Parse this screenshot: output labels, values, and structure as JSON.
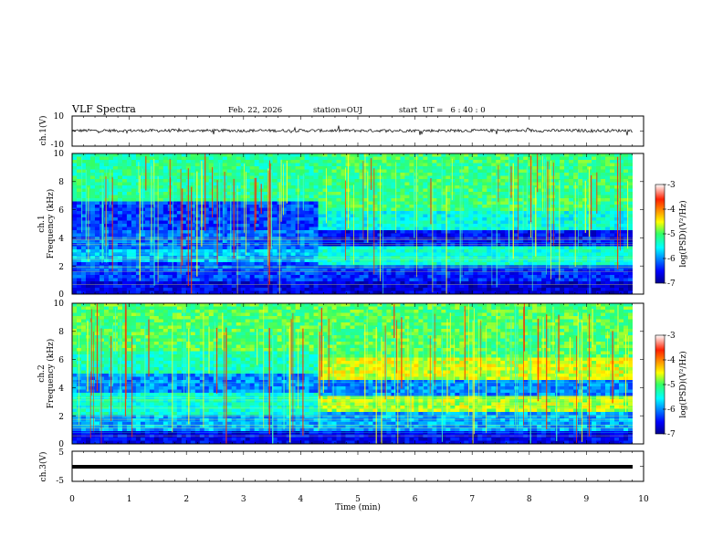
{
  "header": {
    "title": "VLF Spectra",
    "date": "Feb. 22, 2026",
    "station": "station=OUJ",
    "start_ut": "start  UT =   6 : 40 : 0"
  },
  "chart_data": [
    {
      "type": "line",
      "panel": "ch1-waveform",
      "ylabel": "ch.1(V)",
      "ylim": [
        -10,
        10
      ],
      "y_ticks": [
        "10",
        "-10"
      ],
      "x_range_min": [
        0,
        9.85
      ],
      "description_level": 0
    },
    {
      "type": "heatmap",
      "panel": "ch1-spectrogram",
      "ylabel_lines": [
        "ch.1",
        "Frequency (kHz)"
      ],
      "ylim": [
        0,
        10
      ],
      "y_ticks": [
        "0",
        "2",
        "4",
        "6",
        "8",
        "10"
      ],
      "colorbar": {
        "label": "log(PSD)(V²/Hz)",
        "range": [
          -7,
          -3
        ],
        "ticks": [
          "-3",
          "-4",
          "-5",
          "-6",
          "-7"
        ]
      }
    },
    {
      "type": "heatmap",
      "panel": "ch2-spectrogram",
      "ylabel_lines": [
        "ch.2",
        "Frequency (kHz)"
      ],
      "ylim": [
        0,
        10
      ],
      "y_ticks": [
        "0",
        "2",
        "4",
        "6",
        "8",
        "10"
      ],
      "colorbar": {
        "label": "log(PSD)(V²/Hz)",
        "range": [
          -7,
          -3
        ],
        "ticks": [
          "-3",
          "-4",
          "-5",
          "-6",
          "-7"
        ]
      }
    },
    {
      "type": "line",
      "panel": "ch3-waveform",
      "ylabel": "ch.3(V)",
      "ylim": [
        -5,
        5
      ],
      "y_ticks": [
        "5",
        "-5"
      ],
      "level": -0.5
    }
  ],
  "x_axis": {
    "label": "Time (min)",
    "range": [
      0,
      10
    ],
    "ticks": [
      "0",
      "1",
      "2",
      "3",
      "4",
      "5",
      "6",
      "7",
      "8",
      "9",
      "10"
    ]
  }
}
